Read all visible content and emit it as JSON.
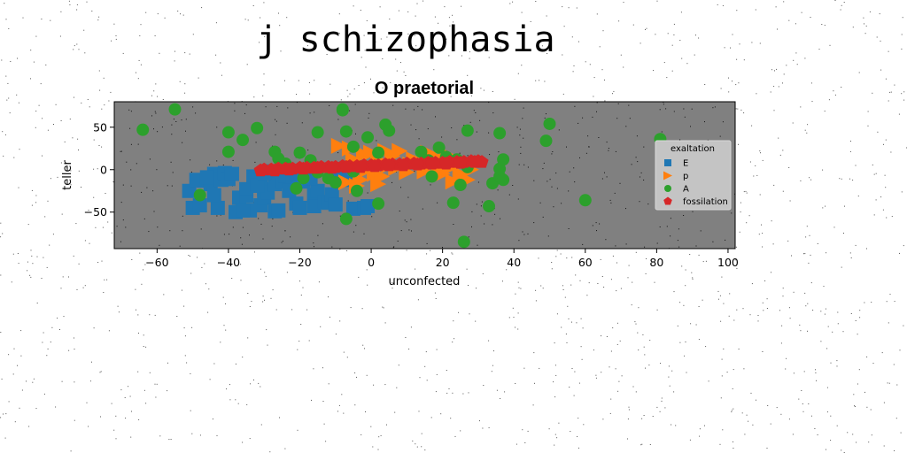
{
  "figure": {
    "suptitle": "j schizophasia"
  },
  "chart_data": {
    "type": "scatter",
    "title": "O praetorial",
    "xlabel": "unconfected",
    "ylabel": "teller",
    "xlim": [
      -72,
      102
    ],
    "ylim": [
      -93,
      80
    ],
    "xticks": [
      -60,
      -40,
      -20,
      0,
      20,
      40,
      60,
      80,
      100
    ],
    "yticks": [
      -50,
      0,
      50
    ],
    "grid": false,
    "background": "#808080",
    "legend": {
      "title": "exaltation",
      "placement": "right"
    },
    "series": [
      {
        "name": "E",
        "marker": "square",
        "color": "#1f77b4",
        "points": [
          [
            -51,
            -25
          ],
          [
            -50,
            -45
          ],
          [
            -48,
            -42
          ],
          [
            -47,
            -13
          ],
          [
            -45,
            -17
          ],
          [
            -44,
            -5
          ],
          [
            -42,
            -12
          ],
          [
            -41,
            -4
          ],
          [
            -40,
            -11
          ],
          [
            -39,
            -5
          ],
          [
            -37,
            -33
          ],
          [
            -35,
            -31
          ],
          [
            -35,
            -23
          ],
          [
            -34,
            -48
          ],
          [
            -33,
            -8
          ],
          [
            -31,
            -42
          ],
          [
            -31,
            -12
          ],
          [
            -30,
            -23
          ],
          [
            -30,
            -33
          ],
          [
            -29,
            -27
          ],
          [
            -28,
            -2
          ],
          [
            -27,
            -49
          ],
          [
            -27,
            -17
          ],
          [
            -26,
            -48
          ],
          [
            -25,
            -14
          ],
          [
            -24,
            -7
          ],
          [
            -22,
            -16
          ],
          [
            -21,
            -4
          ],
          [
            -21,
            -40
          ],
          [
            -20,
            -45
          ],
          [
            -19,
            -14
          ],
          [
            -18,
            -5
          ],
          [
            -16,
            -30
          ],
          [
            -16,
            -43
          ],
          [
            -15,
            -25
          ],
          [
            -13,
            -38
          ],
          [
            -12,
            -39
          ],
          [
            -11,
            -29
          ],
          [
            -10,
            -41
          ],
          [
            -9,
            -9
          ],
          [
            -8,
            -12
          ],
          [
            -7,
            -2
          ],
          [
            -6,
            -5
          ],
          [
            -5,
            -46
          ],
          [
            -2,
            -45
          ],
          [
            -1,
            -43
          ],
          [
            -43,
            -45
          ],
          [
            -38,
            -50
          ],
          [
            -36,
            -48
          ],
          [
            -44,
            -30
          ],
          [
            -49,
            -12
          ],
          [
            -46,
            -9
          ],
          [
            -23,
            -25
          ],
          [
            -17,
            -10
          ],
          [
            -32,
            -19
          ],
          [
            -30,
            -4
          ]
        ]
      },
      {
        "name": "p",
        "marker": "triangle-right",
        "color": "#ff7f0e",
        "points": [
          [
            -9,
            28
          ],
          [
            -7,
            -15
          ],
          [
            -5,
            12
          ],
          [
            -3,
            -12
          ],
          [
            -2,
            18
          ],
          [
            -1,
            0
          ],
          [
            0,
            20
          ],
          [
            1,
            -5
          ],
          [
            2,
            10
          ],
          [
            3,
            -8
          ],
          [
            4,
            22
          ],
          [
            5,
            5
          ],
          [
            6,
            16
          ],
          [
            7,
            2
          ],
          [
            8,
            22
          ],
          [
            10,
            -3
          ],
          [
            12,
            12
          ],
          [
            14,
            8
          ],
          [
            16,
            20
          ],
          [
            18,
            15
          ],
          [
            19,
            0
          ],
          [
            20,
            -5
          ],
          [
            21,
            18
          ],
          [
            22,
            2
          ],
          [
            23,
            -14
          ],
          [
            24,
            8
          ],
          [
            25,
            -5
          ],
          [
            27,
            -12
          ],
          [
            28,
            0
          ],
          [
            -4,
            -19
          ],
          [
            15,
            -2
          ],
          [
            11,
            6
          ],
          [
            2,
            -17
          ],
          [
            -6,
            25
          ]
        ]
      },
      {
        "name": "A",
        "marker": "circle",
        "color": "#2ca02c",
        "points": [
          [
            -64,
            47
          ],
          [
            -55,
            71
          ],
          [
            -48,
            -30
          ],
          [
            -40,
            21
          ],
          [
            -40,
            44
          ],
          [
            -32,
            49
          ],
          [
            -27,
            21
          ],
          [
            -26,
            13
          ],
          [
            -24,
            7
          ],
          [
            -21,
            -22
          ],
          [
            -20,
            20
          ],
          [
            -19,
            -10
          ],
          [
            -17,
            11
          ],
          [
            -15,
            -3
          ],
          [
            -15,
            44
          ],
          [
            -12,
            -10
          ],
          [
            -10,
            -15
          ],
          [
            -8,
            70
          ],
          [
            -8,
            71
          ],
          [
            -7,
            -58
          ],
          [
            -7,
            45
          ],
          [
            -5,
            -2
          ],
          [
            -5,
            27
          ],
          [
            -4,
            -25
          ],
          [
            -1,
            38
          ],
          [
            2,
            -40
          ],
          [
            2,
            20
          ],
          [
            4,
            53
          ],
          [
            5,
            46
          ],
          [
            14,
            21
          ],
          [
            16,
            11
          ],
          [
            17,
            -8
          ],
          [
            19,
            26
          ],
          [
            21,
            15
          ],
          [
            23,
            -39
          ],
          [
            25,
            -18
          ],
          [
            26,
            -85
          ],
          [
            27,
            46
          ],
          [
            33,
            -43
          ],
          [
            34,
            -16
          ],
          [
            36,
            43
          ],
          [
            37,
            12
          ],
          [
            36,
            -8
          ],
          [
            37,
            -12
          ],
          [
            49,
            34
          ],
          [
            50,
            54
          ],
          [
            60,
            -36
          ],
          [
            81,
            36
          ],
          [
            92,
            -20
          ],
          [
            24,
            12
          ],
          [
            27,
            3
          ],
          [
            36,
            1
          ],
          [
            -36,
            35
          ]
        ]
      },
      {
        "name": "fossilation",
        "marker": "pentagon",
        "color": "#d62728",
        "points": [
          [
            -30,
            0
          ],
          [
            -28,
            0
          ],
          [
            -26,
            1
          ],
          [
            -24,
            1
          ],
          [
            -22,
            1
          ],
          [
            -20,
            2
          ],
          [
            -18,
            2
          ],
          [
            -16,
            2
          ],
          [
            -14,
            3
          ],
          [
            -12,
            3
          ],
          [
            -10,
            3
          ],
          [
            -8,
            4
          ],
          [
            -6,
            4
          ],
          [
            -4,
            4
          ],
          [
            -2,
            5
          ],
          [
            0,
            5
          ],
          [
            2,
            5
          ],
          [
            4,
            6
          ],
          [
            6,
            6
          ],
          [
            8,
            6
          ],
          [
            10,
            7
          ],
          [
            12,
            7
          ],
          [
            14,
            7
          ],
          [
            16,
            8
          ],
          [
            18,
            8
          ],
          [
            20,
            8
          ],
          [
            22,
            9
          ],
          [
            24,
            9
          ],
          [
            26,
            9
          ],
          [
            28,
            10
          ],
          [
            30,
            10
          ],
          [
            -31,
            -1
          ],
          [
            31,
            9
          ],
          [
            -27,
            -1
          ],
          [
            -23,
            0
          ],
          [
            -19,
            1
          ],
          [
            -15,
            2
          ],
          [
            -11,
            2
          ],
          [
            -7,
            3
          ],
          [
            -3,
            3
          ],
          [
            1,
            4
          ],
          [
            5,
            5
          ],
          [
            9,
            5
          ],
          [
            13,
            6
          ],
          [
            17,
            7
          ],
          [
            21,
            7
          ],
          [
            25,
            8
          ],
          [
            29,
            9
          ]
        ]
      }
    ]
  }
}
